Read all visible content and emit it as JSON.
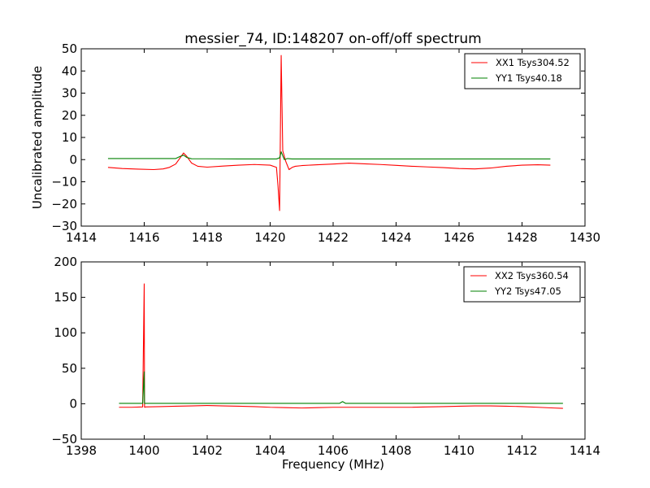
{
  "chart_data": [
    {
      "type": "line",
      "title": "messier_74, ID:148207 on-off/off spectrum",
      "xlabel": "",
      "ylabel": "Uncalibrated amplitude",
      "xlim": [
        1414,
        1430
      ],
      "ylim": [
        -30,
        50
      ],
      "xticks": [
        "1414",
        "1416",
        "1418",
        "1420",
        "1422",
        "1424",
        "1426",
        "1428",
        "1430"
      ],
      "yticks": [
        "−30",
        "−20",
        "−10",
        "0",
        "10",
        "20",
        "30",
        "40",
        "50"
      ],
      "xtick_values": [
        1414,
        1416,
        1418,
        1420,
        1422,
        1424,
        1426,
        1428,
        1430
      ],
      "ytick_values": [
        -30,
        -20,
        -10,
        0,
        10,
        20,
        30,
        40,
        50
      ],
      "legend_position": "top-right",
      "series": [
        {
          "name": "XX1 Tsys304.52",
          "color": "#ff0000",
          "x": [
            1414.85,
            1415.3,
            1415.8,
            1416.3,
            1416.6,
            1416.8,
            1417.0,
            1417.15,
            1417.25,
            1417.35,
            1417.5,
            1417.7,
            1418.0,
            1418.5,
            1419.0,
            1419.5,
            1420.0,
            1420.2,
            1420.25,
            1420.3,
            1420.35,
            1420.4,
            1420.5,
            1420.6,
            1420.7,
            1420.8,
            1421.0,
            1421.5,
            1422.0,
            1422.5,
            1423.0,
            1423.5,
            1424.0,
            1424.5,
            1425.0,
            1425.5,
            1426.0,
            1426.5,
            1427.0,
            1427.5,
            1428.0,
            1428.5,
            1428.9
          ],
          "y": [
            -3.5,
            -4.0,
            -4.3,
            -4.5,
            -4.2,
            -3.5,
            -2.0,
            1.0,
            3.0,
            1.5,
            -1.5,
            -3.0,
            -3.4,
            -2.9,
            -2.5,
            -2.2,
            -2.5,
            -3.5,
            -12.0,
            -23.0,
            47.0,
            4.0,
            -1.0,
            -4.5,
            -3.5,
            -3.0,
            -2.7,
            -2.3,
            -2.0,
            -1.6,
            -1.9,
            -2.2,
            -2.6,
            -3.0,
            -3.3,
            -3.6,
            -4.0,
            -4.2,
            -3.8,
            -3.0,
            -2.5,
            -2.3,
            -2.5
          ]
        },
        {
          "name": "YY1 Tsys40.18",
          "color": "#008000",
          "x": [
            1414.85,
            1416.0,
            1417.0,
            1417.15,
            1417.25,
            1417.35,
            1417.5,
            1419.0,
            1420.2,
            1420.3,
            1420.35,
            1420.45,
            1420.55,
            1420.7,
            1422.0,
            1424.0,
            1426.0,
            1428.0,
            1428.9
          ],
          "y": [
            0.5,
            0.5,
            0.5,
            1.5,
            2.0,
            1.0,
            0.4,
            0.3,
            0.3,
            0.8,
            3.5,
            0.0,
            0.5,
            0.3,
            0.3,
            0.3,
            0.3,
            0.3,
            0.3
          ]
        }
      ]
    },
    {
      "type": "line",
      "title": "",
      "xlabel": "Frequency (MHz)",
      "ylabel": "",
      "xlim": [
        1398,
        1414
      ],
      "ylim": [
        -50,
        200
      ],
      "xticks": [
        "1398",
        "1400",
        "1402",
        "1404",
        "1406",
        "1408",
        "1410",
        "1412",
        "1414"
      ],
      "yticks": [
        "−50",
        "0",
        "50",
        "100",
        "150",
        "200"
      ],
      "xtick_values": [
        1398,
        1400,
        1402,
        1404,
        1406,
        1408,
        1410,
        1412,
        1414
      ],
      "ytick_values": [
        -50,
        0,
        50,
        100,
        150,
        200
      ],
      "legend_position": "top-right",
      "series": [
        {
          "name": "XX2 Tsys360.54",
          "color": "#ff0000",
          "x": [
            1399.2,
            1399.6,
            1399.95,
            1400.0,
            1400.01,
            1400.05,
            1400.5,
            1401.0,
            1401.5,
            1402.0,
            1402.5,
            1403.0,
            1403.5,
            1404.0,
            1404.5,
            1405.0,
            1405.5,
            1406.0,
            1406.5,
            1407.0,
            1407.5,
            1408.0,
            1408.5,
            1409.0,
            1409.5,
            1410.0,
            1410.5,
            1411.0,
            1411.5,
            1412.0,
            1412.5,
            1413.0,
            1413.3
          ],
          "y": [
            -5,
            -5,
            -4.5,
            169,
            -5,
            -4.5,
            -4,
            -3.5,
            -3,
            -2.5,
            -3,
            -3.5,
            -4,
            -5,
            -5.5,
            -6,
            -5.5,
            -5,
            -5,
            -5,
            -5,
            -5,
            -5,
            -4.5,
            -4,
            -3.5,
            -3,
            -3,
            -3.5,
            -4,
            -5,
            -6,
            -6.5
          ]
        },
        {
          "name": "YY2 Tsys47.05",
          "color": "#008000",
          "x": [
            1399.2,
            1399.95,
            1400.0,
            1400.01,
            1400.05,
            1402.0,
            1404.0,
            1406.2,
            1406.3,
            1406.4,
            1408.0,
            1410.0,
            1412.0,
            1413.3
          ],
          "y": [
            0.5,
            0.5,
            45,
            0.3,
            0.5,
            0.5,
            0.5,
            0.5,
            3,
            0.5,
            0.5,
            0.5,
            0.5,
            0.5
          ]
        }
      ]
    }
  ]
}
